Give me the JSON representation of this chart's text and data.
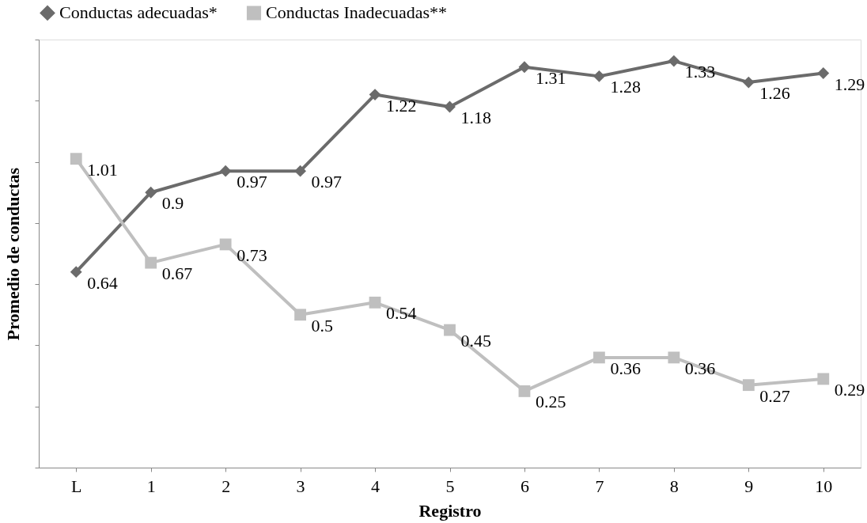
{
  "chart_data": {
    "type": "line",
    "xlabel": "Registro",
    "ylabel": "Promedio de conductas",
    "categories": [
      "L",
      "1",
      "2",
      "3",
      "4",
      "5",
      "6",
      "7",
      "8",
      "9",
      "10"
    ],
    "series": [
      {
        "name": "Conductas adecuadas*",
        "color": "#6b6b6b",
        "marker": "diamond",
        "values": [
          0.64,
          0.9,
          0.97,
          0.97,
          1.22,
          1.18,
          1.31,
          1.28,
          1.33,
          1.26,
          1.29
        ]
      },
      {
        "name": "Conductas Inadecuadas**",
        "color": "#bfbfbf",
        "marker": "square",
        "values": [
          1.01,
          0.67,
          0.73,
          0.5,
          0.54,
          0.45,
          0.25,
          0.36,
          0.36,
          0.27,
          0.29
        ]
      }
    ],
    "ylim": [
      0,
      1.4
    ],
    "yticks": [
      {
        "value": 0,
        "label": null
      },
      {
        "value": 0.2,
        "label": null
      },
      {
        "value": 0.4,
        "label": null
      },
      {
        "value": 0.6,
        "label": null
      },
      {
        "value": 0.8,
        "label": null
      },
      {
        "value": 1.0,
        "label": null
      },
      {
        "value": 1.2,
        "label": null
      },
      {
        "value": 1.4,
        "label": null
      }
    ],
    "tick_labels": "x",
    "data_labels": true,
    "legend": "top",
    "grid": false,
    "line_style": "solid"
  }
}
